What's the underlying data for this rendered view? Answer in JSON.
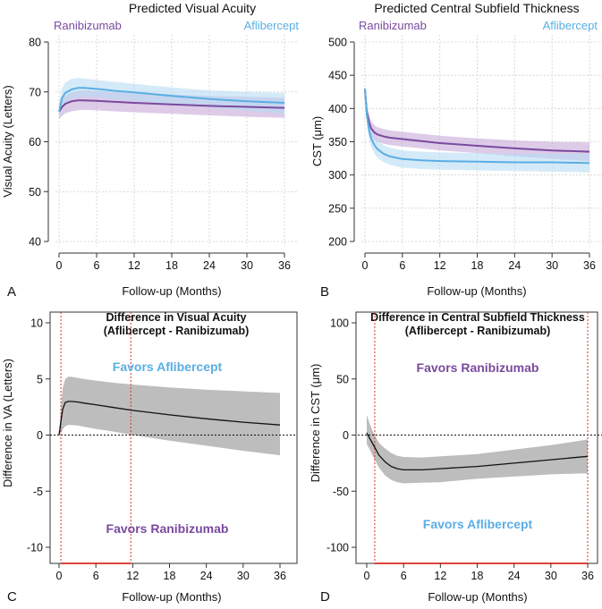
{
  "chart_data": [
    {
      "panel_label": "A",
      "type": "line",
      "title": "Predicted Visual Acuity",
      "xlabel": "Follow-up (Months)",
      "ylabel": "Visual Acuity (Letters)",
      "xlim": [
        0,
        36
      ],
      "ylim": [
        40,
        80
      ],
      "xticks": [
        0,
        6,
        12,
        18,
        24,
        30,
        36
      ],
      "yticks": [
        40,
        50,
        60,
        70,
        80
      ],
      "grid": true,
      "legend": [
        {
          "name": "Ranibizumab",
          "color": "#7a4a9e",
          "position": "top-left"
        },
        {
          "name": "Aflibercept",
          "color": "#5aaee3",
          "position": "top-right"
        }
      ],
      "series": [
        {
          "name": "Ranibizumab",
          "color": "#7a4a9e",
          "band_color": "#c7a9d8",
          "x": [
            0,
            0.5,
            1,
            2,
            3,
            4,
            6,
            9,
            12,
            18,
            24,
            30,
            36
          ],
          "y": [
            66,
            67,
            67.6,
            68.1,
            68.3,
            68.3,
            68.2,
            68,
            67.8,
            67.5,
            67.2,
            67,
            66.8
          ],
          "lower": [
            64.5,
            65.2,
            65.7,
            66.1,
            66.3,
            66.4,
            66.3,
            66.1,
            65.9,
            65.6,
            65.3,
            65,
            64.8
          ],
          "upper": [
            67.5,
            68.6,
            69.3,
            69.9,
            70.2,
            70.3,
            70.2,
            70,
            69.8,
            69.5,
            69.2,
            69,
            68.8
          ]
        },
        {
          "name": "Aflibercept",
          "color": "#5aaee3",
          "band_color": "#b8dcf4",
          "x": [
            0,
            0.5,
            1,
            2,
            3,
            4,
            6,
            9,
            12,
            18,
            24,
            30,
            36
          ],
          "y": [
            66,
            68.8,
            69.8,
            70.5,
            70.8,
            70.8,
            70.6,
            70.2,
            69.9,
            69.2,
            68.6,
            68.1,
            67.8
          ],
          "lower": [
            64.5,
            66.8,
            67.8,
            68.6,
            68.9,
            69,
            68.9,
            68.5,
            68.2,
            67.5,
            66.9,
            66.2,
            65.6
          ],
          "upper": [
            68,
            70.8,
            71.9,
            72.6,
            72.8,
            72.7,
            72.4,
            72,
            71.6,
            70.9,
            70.3,
            70,
            69.8
          ]
        }
      ]
    },
    {
      "panel_label": "B",
      "type": "line",
      "title": "Predicted Central Subfield Thickness",
      "xlabel": "Follow-up (Months)",
      "ylabel": "CST (μm)",
      "xlim": [
        0,
        36
      ],
      "ylim": [
        200,
        500
      ],
      "xticks": [
        0,
        6,
        12,
        18,
        24,
        30,
        36
      ],
      "yticks": [
        200,
        250,
        300,
        350,
        400,
        450,
        500
      ],
      "grid": true,
      "legend": [
        {
          "name": "Ranibizumab",
          "color": "#7a4a9e",
          "position": "top-left"
        },
        {
          "name": "Aflibercept",
          "color": "#5aaee3",
          "position": "top-right"
        }
      ],
      "series": [
        {
          "name": "Ranibizumab",
          "color": "#7a4a9e",
          "band_color": "#c7a9d8",
          "x": [
            0,
            0.3,
            0.7,
            1,
            1.5,
            2,
            3,
            4,
            6,
            9,
            12,
            18,
            24,
            30,
            36
          ],
          "y": [
            428,
            395,
            378,
            370,
            364,
            361,
            358,
            356,
            354,
            351,
            348,
            344,
            340,
            337,
            335
          ],
          "lower": [
            422,
            385,
            367,
            359,
            353,
            350,
            347,
            345,
            343,
            340,
            337,
            333,
            328,
            324,
            321
          ],
          "upper": [
            432,
            405,
            389,
            381,
            375,
            372,
            369,
            367,
            365,
            362,
            359,
            355,
            352,
            350,
            349
          ]
        },
        {
          "name": "Aflibercept",
          "color": "#5aaee3",
          "band_color": "#b8dcf4",
          "x": [
            0,
            0.3,
            0.7,
            1,
            1.5,
            2,
            3,
            4,
            6,
            9,
            12,
            18,
            24,
            30,
            36
          ],
          "y": [
            430,
            390,
            365,
            355,
            345,
            339,
            332,
            328,
            324,
            322,
            321,
            320,
            319,
            319,
            318
          ],
          "lower": [
            424,
            378,
            352,
            342,
            332,
            326,
            319,
            315,
            311,
            309,
            308,
            307,
            306,
            305,
            304
          ],
          "upper": [
            436,
            402,
            378,
            368,
            358,
            352,
            345,
            341,
            337,
            335,
            334,
            333,
            332,
            332,
            332
          ]
        }
      ]
    },
    {
      "panel_label": "C",
      "type": "line",
      "title": "Difference in Visual Acuity",
      "subtitle": "(Aflibercept - Ranibizumab)",
      "xlabel": "Follow-up (Months)",
      "ylabel": "Difference in VA (Letters)",
      "xlim": [
        0,
        36
      ],
      "ylim": [
        -10,
        10
      ],
      "xticks": [
        0,
        6,
        12,
        18,
        24,
        30,
        36
      ],
      "yticks": [
        -10,
        -5,
        0,
        5,
        10
      ],
      "grid": false,
      "annotations": [
        {
          "text": "Favors Aflibercept",
          "color": "#5aaee3",
          "position": "top"
        },
        {
          "text": "Favors Ranibizumab",
          "color": "#7a4a9e",
          "position": "bottom"
        }
      ],
      "reference_line_y": 0,
      "vertical_lines_x": [
        0.3,
        11.7
      ],
      "significant_interval_x": [
        0.3,
        11.7
      ],
      "series": [
        {
          "name": "Difference",
          "color": "#111111",
          "band_color": "#bdbdbd",
          "x": [
            0,
            0.3,
            0.6,
            1,
            1.5,
            2,
            3,
            4,
            6,
            9,
            12,
            18,
            24,
            30,
            36
          ],
          "y": [
            0,
            1.2,
            2.3,
            2.9,
            3.0,
            3.0,
            2.95,
            2.85,
            2.7,
            2.45,
            2.2,
            1.8,
            1.45,
            1.15,
            0.9
          ],
          "lower": [
            0,
            0.2,
            0.5,
            0.8,
            0.9,
            0.9,
            0.85,
            0.75,
            0.55,
            0.3,
            0.0,
            -0.5,
            -0.95,
            -1.4,
            -1.8
          ],
          "upper": [
            0,
            2.5,
            4.2,
            5.0,
            5.2,
            5.2,
            5.1,
            5.0,
            4.85,
            4.65,
            4.5,
            4.25,
            4.05,
            3.9,
            3.75
          ]
        }
      ]
    },
    {
      "panel_label": "D",
      "type": "line",
      "title": "Difference in Central Subfield Thickness",
      "subtitle": "(Aflibercept - Ranibizumab)",
      "xlabel": "Follow-up (Months)",
      "ylabel": "Difference in CST (μm)",
      "xlim": [
        0,
        36
      ],
      "ylim": [
        -100,
        100
      ],
      "xticks": [
        0,
        6,
        12,
        18,
        24,
        30,
        36
      ],
      "yticks": [
        -100,
        -50,
        0,
        50,
        100
      ],
      "grid": false,
      "annotations": [
        {
          "text": "Favors Ranibizumab",
          "color": "#7a4a9e",
          "position": "top"
        },
        {
          "text": "Favors Aflibercept",
          "color": "#5aaee3",
          "position": "bottom"
        }
      ],
      "reference_line_y": 0,
      "vertical_lines_x": [
        1.3,
        36
      ],
      "significant_interval_x": [
        1.3,
        36
      ],
      "series": [
        {
          "name": "Difference",
          "color": "#111111",
          "band_color": "#bdbdbd",
          "x": [
            0,
            0.5,
            1,
            1.5,
            2,
            3,
            4,
            5,
            6,
            9,
            12,
            18,
            24,
            30,
            36
          ],
          "y": [
            2,
            -3,
            -8,
            -13,
            -18,
            -24,
            -28,
            -30,
            -31,
            -31,
            -30,
            -28,
            -25,
            -22,
            -19
          ],
          "lower": [
            -8,
            -13,
            -19,
            -24,
            -29,
            -36,
            -40,
            -42,
            -43,
            -42.5,
            -42,
            -39,
            -37,
            -35,
            -34
          ],
          "upper": [
            18,
            10,
            3,
            -2,
            -7,
            -12,
            -16,
            -18.5,
            -19.5,
            -20,
            -19,
            -17,
            -13,
            -9,
            -4
          ]
        }
      ]
    }
  ]
}
